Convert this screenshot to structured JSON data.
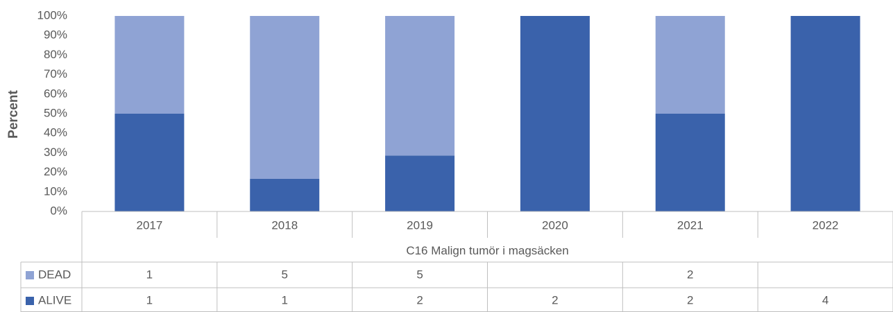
{
  "chart_data": {
    "type": "bar",
    "stacking": "percent",
    "y_label": "Percent",
    "group_label": "C16 Malign tumör i magsäcken",
    "categories": [
      "2017",
      "2018",
      "2019",
      "2020",
      "2021",
      "2022"
    ],
    "series": [
      {
        "name": "ALIVE",
        "color": "#3a62ab",
        "values": [
          1,
          1,
          2,
          2,
          2,
          4
        ]
      },
      {
        "name": "DEAD",
        "color": "#8fa3d4",
        "values": [
          1,
          5,
          5,
          null,
          2,
          null
        ]
      }
    ],
    "ylim": [
      0,
      100
    ],
    "yticks": [
      {
        "value": 0,
        "label": "0%"
      },
      {
        "value": 10,
        "label": "10%"
      },
      {
        "value": 20,
        "label": "20%"
      },
      {
        "value": 30,
        "label": "30%"
      },
      {
        "value": 40,
        "label": "40%"
      },
      {
        "value": 50,
        "label": "50%"
      },
      {
        "value": 60,
        "label": "60%"
      },
      {
        "value": 70,
        "label": "70%"
      },
      {
        "value": 80,
        "label": "80%"
      },
      {
        "value": 90,
        "label": "90%"
      },
      {
        "value": 100,
        "label": "100%"
      }
    ],
    "grid": false,
    "data_table": true
  }
}
